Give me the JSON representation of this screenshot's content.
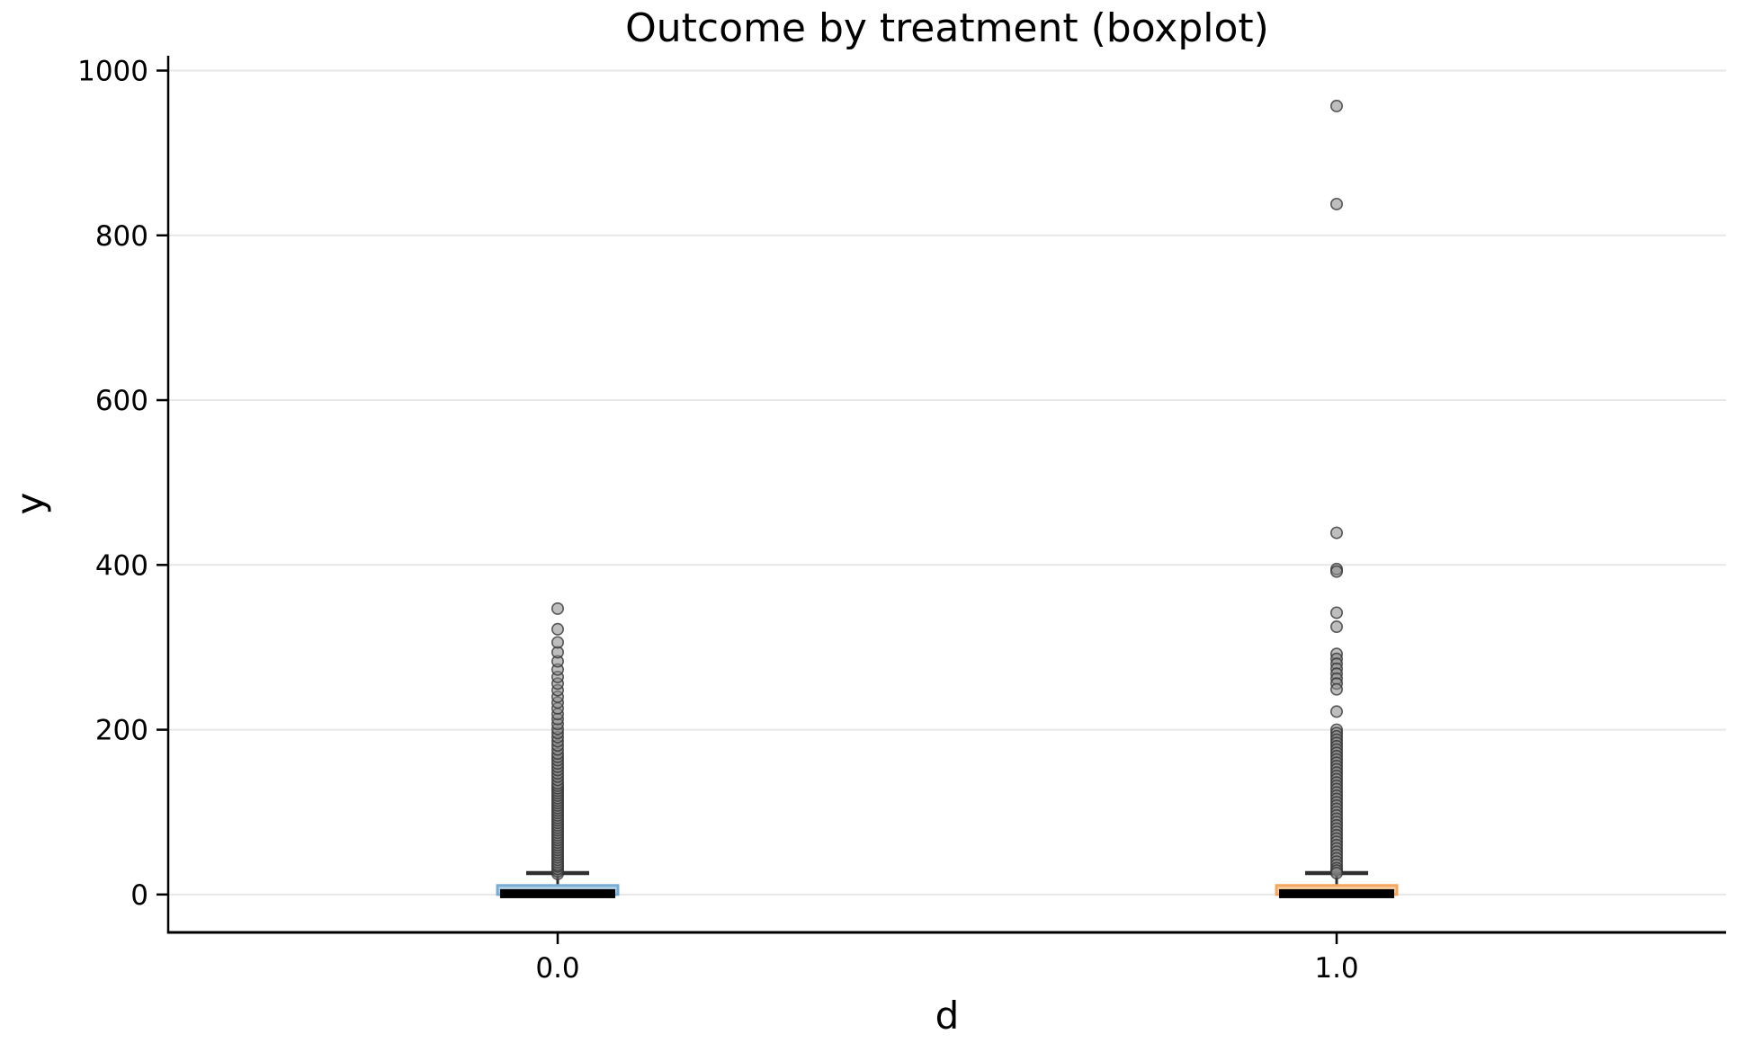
{
  "figure": {
    "background": "#ffffff"
  },
  "chart_data": {
    "type": "boxplot",
    "title": "Outcome by treatment (boxplot)",
    "xlabel": "d",
    "ylabel": "y",
    "categories": [
      "0.0",
      "1.0"
    ],
    "ytick_labels": [
      "0",
      "200",
      "400",
      "600",
      "800",
      "1000"
    ],
    "ytick_values": [
      0,
      200,
      400,
      600,
      800,
      1000
    ],
    "ylim": [
      -46,
      1018
    ],
    "grid": "horizontal",
    "legend": "none",
    "colors": {
      "grid": "#e7e7e7",
      "spine": "#000000",
      "whisker": "#2f2f2f",
      "median": "#000000",
      "flier_fill": "#888888",
      "flier_edge": "#333333"
    },
    "groups": [
      {
        "category": "0.0",
        "box_fill": "#b3d1e8",
        "box_edge": "#7aadd4",
        "stats": {
          "whisker_low": 0,
          "q1": 0,
          "median": 1,
          "q3": 11,
          "whisker_high": 26
        },
        "outliers": [
          25,
          28,
          31,
          34,
          36,
          39,
          42,
          45,
          48,
          51,
          54,
          57,
          60,
          63,
          66,
          69,
          72,
          75,
          78,
          81,
          84,
          87,
          90,
          93,
          96,
          99,
          102,
          105,
          108,
          111,
          114,
          117,
          120,
          123,
          126,
          129,
          132,
          135,
          139,
          143,
          147,
          151,
          155,
          159,
          163,
          167,
          171,
          176,
          181,
          186,
          191,
          196,
          201,
          207,
          213,
          219,
          226,
          233,
          240,
          248,
          256,
          264,
          273,
          283,
          294,
          306,
          322,
          347
        ]
      },
      {
        "category": "1.0",
        "box_fill": "#fccfa2",
        "box_edge": "#f2a860",
        "stats": {
          "whisker_low": 0,
          "q1": 0,
          "median": 1,
          "q3": 11,
          "whisker_high": 26
        },
        "outliers": [
          957,
          838,
          439,
          395,
          392,
          342,
          325,
          292,
          286,
          280,
          274,
          268,
          262,
          256,
          249,
          222,
          200,
          196,
          192,
          188,
          184,
          180,
          176,
          172,
          168,
          164,
          160,
          156,
          152,
          148,
          144,
          140,
          136,
          132,
          128,
          124,
          120,
          116,
          112,
          108,
          104,
          100,
          96,
          92,
          88,
          84,
          80,
          76,
          72,
          68,
          64,
          60,
          56,
          52,
          48,
          44,
          40,
          36,
          32,
          29,
          26
        ]
      }
    ]
  }
}
